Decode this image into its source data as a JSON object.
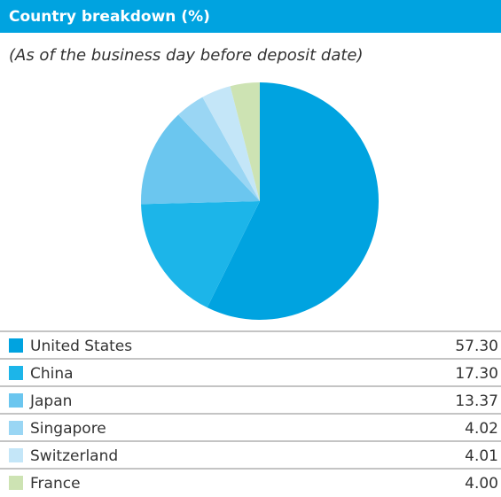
{
  "chart_data": {
    "type": "pie",
    "title": "Country breakdown (%)",
    "subtitle": "(As of the business day before deposit date)",
    "categories": [
      "United States",
      "China",
      "Japan",
      "Singapore",
      "Switzerland",
      "France"
    ],
    "values": [
      57.3,
      17.3,
      13.37,
      4.02,
      4.01,
      4.0
    ],
    "value_labels": [
      "57.30",
      "17.30",
      "13.37",
      "4.02",
      "4.01",
      "4.00"
    ],
    "colors": [
      "#00a3e0",
      "#1cb5e9",
      "#6bc6ef",
      "#9ad6f4",
      "#c4e6f8",
      "#cde3b3"
    ]
  }
}
